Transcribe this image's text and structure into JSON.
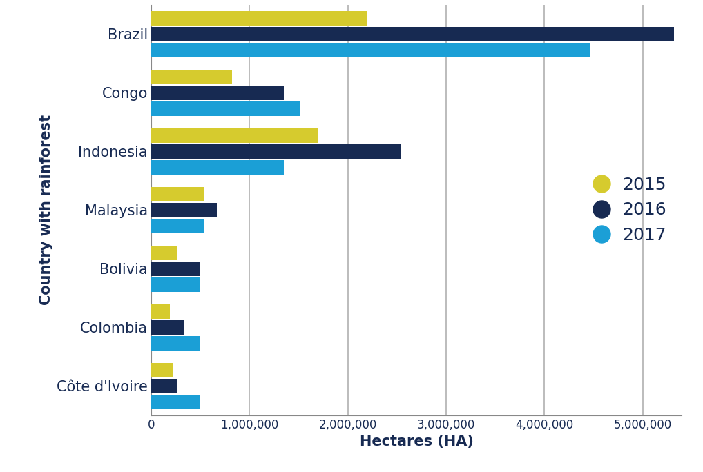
{
  "chart_data": {
    "type": "bar",
    "orientation": "horizontal",
    "categories": [
      "Brazil",
      "Congo",
      "Indonesia",
      "Malaysia",
      "Bolivia",
      "Colombia",
      "Côte d'Ivoire"
    ],
    "series": [
      {
        "name": "2015",
        "color": "#d6cb2e",
        "values": [
          2200000,
          820000,
          1700000,
          540000,
          270000,
          190000,
          220000
        ]
      },
      {
        "name": "2016",
        "color": "#172a52",
        "values": [
          5320000,
          1350000,
          2540000,
          670000,
          490000,
          330000,
          270000
        ]
      },
      {
        "name": "2017",
        "color": "#1b9fd6",
        "values": [
          4470000,
          1520000,
          1350000,
          540000,
          490000,
          490000,
          490000
        ]
      }
    ],
    "x_label": "Hectares (HA)",
    "y_label": "Country with rainforest",
    "xlim": [
      0,
      5400000
    ],
    "xticks": [
      0,
      {
        "value": 1000000,
        "label": "1,000,000"
      },
      {
        "value": 2000000,
        "label": "2,000,000"
      },
      {
        "value": 3000000,
        "label": "3,000,000"
      },
      {
        "value": 4000000,
        "label": "4,000,000"
      },
      {
        "value": 5000000,
        "label": "5,000,000"
      }
    ],
    "grid": true,
    "legend": "center right"
  }
}
